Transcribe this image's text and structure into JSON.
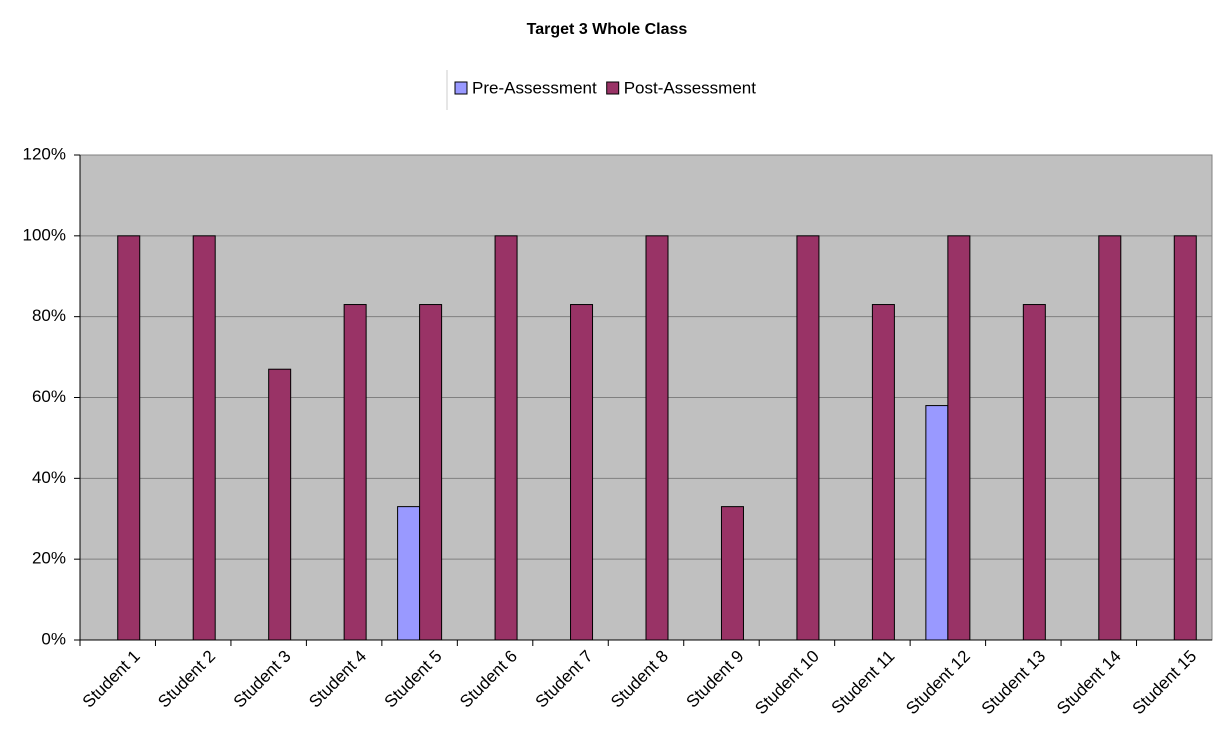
{
  "chart_data": {
    "type": "bar",
    "title": "Target 3 Whole Class",
    "categories": [
      "Student 1",
      "Student 2",
      "Student 3",
      "Student 4",
      "Student 5",
      "Student 6",
      "Student 7",
      "Student 8",
      "Student 9",
      "Student 10",
      "Student 11",
      "Student 12",
      "Student 13",
      "Student 14",
      "Student 15"
    ],
    "series": [
      {
        "name": "Pre-Assessment",
        "color": "#9999ff",
        "values": [
          0,
          0,
          0,
          0,
          33,
          0,
          0,
          0,
          0,
          0,
          0,
          58,
          0,
          0,
          0
        ]
      },
      {
        "name": "Post-Assessment",
        "color": "#993366",
        "values": [
          100,
          100,
          67,
          83,
          83,
          100,
          83,
          100,
          33,
          100,
          83,
          100,
          83,
          100,
          100
        ]
      }
    ],
    "ylim": [
      0,
      120
    ],
    "yticks": [
      {
        "value": 0,
        "label": "0%"
      },
      {
        "value": 20,
        "label": "20%"
      },
      {
        "value": 40,
        "label": "40%"
      },
      {
        "value": 60,
        "label": "60%"
      },
      {
        "value": 80,
        "label": "80%"
      },
      {
        "value": 100,
        "label": "100%"
      },
      {
        "value": 120,
        "label": "120%"
      }
    ],
    "grid": true,
    "legend": "top"
  }
}
